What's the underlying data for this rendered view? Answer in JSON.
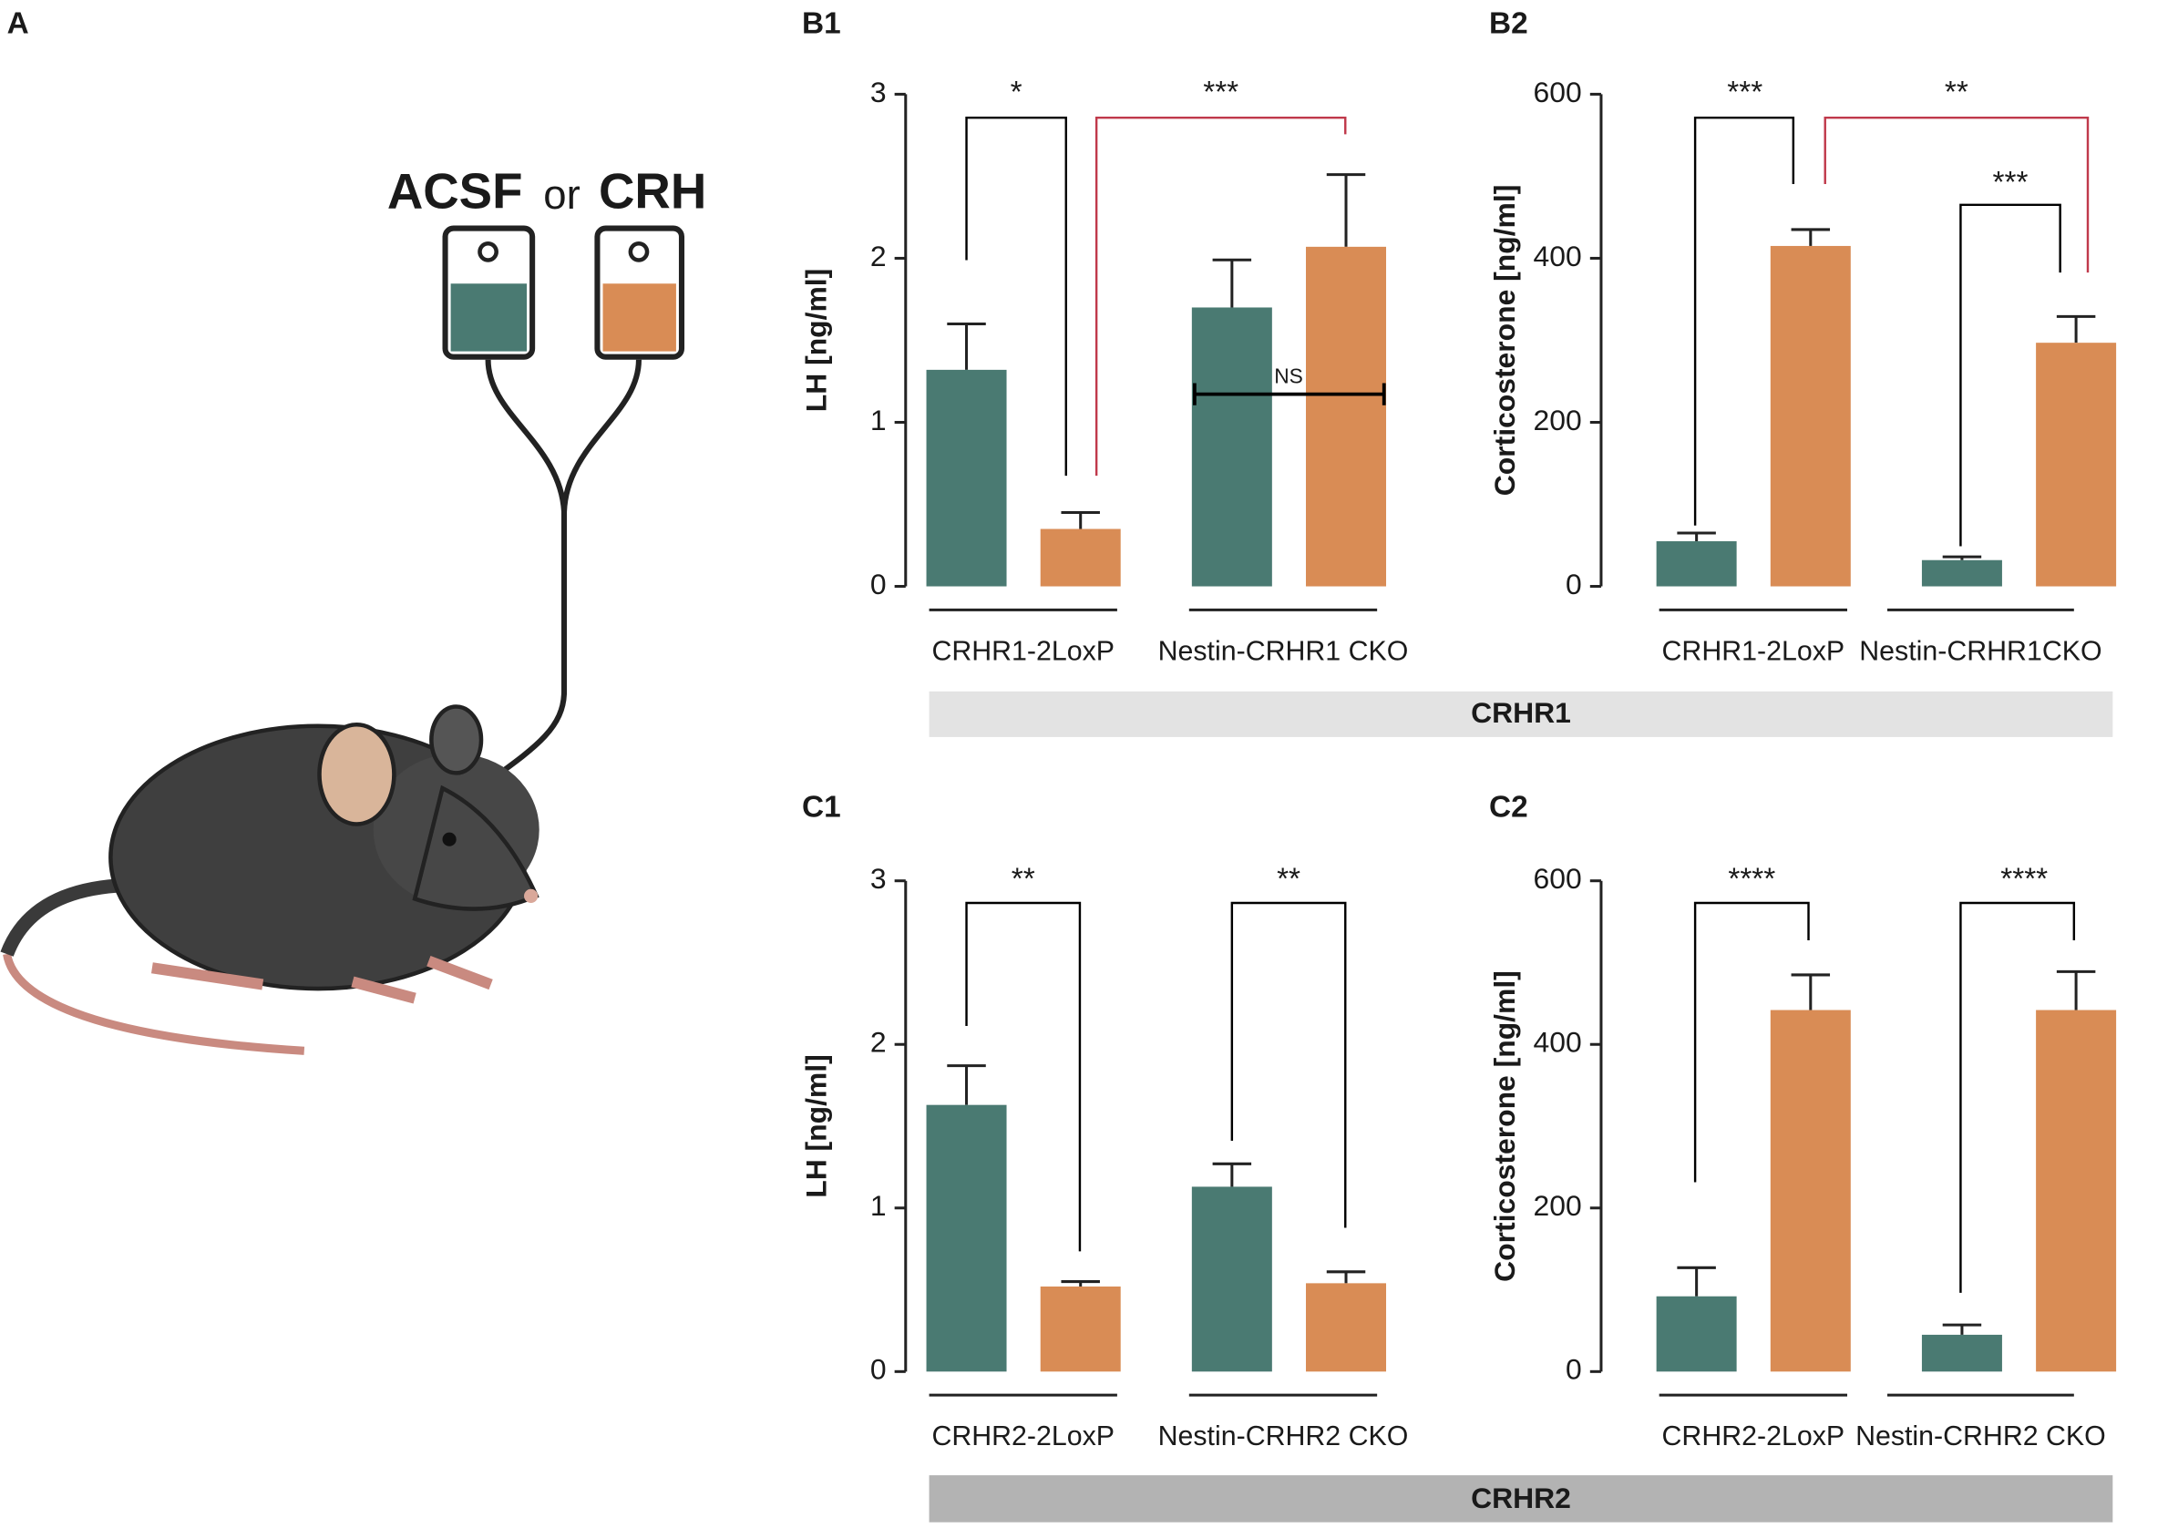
{
  "illustration": {
    "label": "A",
    "texts": [
      "ACSF",
      "or",
      "CRH"
    ]
  },
  "group_labels": [
    "CRHR1",
    "CRHR2"
  ],
  "chart_data": [
    {
      "type": "bar",
      "label": "B1",
      "ylabel": "LH  [ng/ml]",
      "categories": [
        "CRHR1-2LoxP",
        "Nestin-CRHR1 CKO"
      ],
      "series": [
        {
          "color": "#4a7a72",
          "values": [
            1.32,
            1.7
          ],
          "errors": [
            0.28,
            0.29
          ]
        },
        {
          "color": "#d98c55",
          "values": [
            0.35,
            2.07
          ],
          "errors": [
            0.1,
            0.44
          ]
        }
      ],
      "ylim": [
        0,
        3
      ],
      "yticks": [
        0,
        1,
        2,
        3
      ],
      "annotations": [
        {
          "text": "*",
          "color": "#000000"
        },
        {
          "text": "***",
          "color": "#c0394b"
        },
        {
          "text": "NS",
          "color": "#000000"
        }
      ]
    },
    {
      "type": "bar",
      "label": "B2",
      "ylabel": "Corticosterone [ng/ml]",
      "categories": [
        "CRHR1-2LoxP",
        "Nestin-CRHR1CKO"
      ],
      "series": [
        {
          "color": "#4a7a72",
          "values": [
            55,
            32
          ],
          "errors": [
            10,
            4
          ]
        },
        {
          "color": "#d98c55",
          "values": [
            415,
            297
          ],
          "errors": [
            20,
            32
          ]
        }
      ],
      "ylim": [
        0,
        600
      ],
      "yticks": [
        0,
        200,
        400,
        600
      ],
      "annotations": [
        {
          "text": "***",
          "color": "#000000"
        },
        {
          "text": "**",
          "color": "#c0394b"
        },
        {
          "text": "***",
          "color": "#000000"
        }
      ]
    },
    {
      "type": "bar",
      "label": "C1",
      "ylabel": "LH  [ng/ml]",
      "categories": [
        "CRHR2-2LoxP",
        "Nestin-CRHR2 CKO"
      ],
      "series": [
        {
          "color": "#4a7a72",
          "values": [
            1.63,
            1.13
          ],
          "errors": [
            0.24,
            0.14
          ]
        },
        {
          "color": "#d98c55",
          "values": [
            0.52,
            0.54
          ],
          "errors": [
            0.03,
            0.07
          ]
        }
      ],
      "ylim": [
        0,
        3
      ],
      "yticks": [
        0,
        1,
        2,
        3
      ],
      "annotations": [
        {
          "text": "**",
          "color": "#000000"
        },
        {
          "text": "**",
          "color": "#000000"
        }
      ]
    },
    {
      "type": "bar",
      "label": "C2",
      "ylabel": "Corticosterone [ng/ml]",
      "categories": [
        "CRHR2-2LoxP",
        "Nestin-CRHR2 CKO"
      ],
      "series": [
        {
          "color": "#4a7a72",
          "values": [
            92,
            45
          ],
          "errors": [
            35,
            12
          ]
        },
        {
          "color": "#d98c55",
          "values": [
            442,
            442
          ],
          "errors": [
            43,
            47
          ]
        }
      ],
      "ylim": [
        0,
        600
      ],
      "yticks": [
        0,
        200,
        400,
        600
      ],
      "annotations": [
        {
          "text": "****",
          "color": "#000000"
        },
        {
          "text": "****",
          "color": "#000000"
        }
      ]
    }
  ]
}
